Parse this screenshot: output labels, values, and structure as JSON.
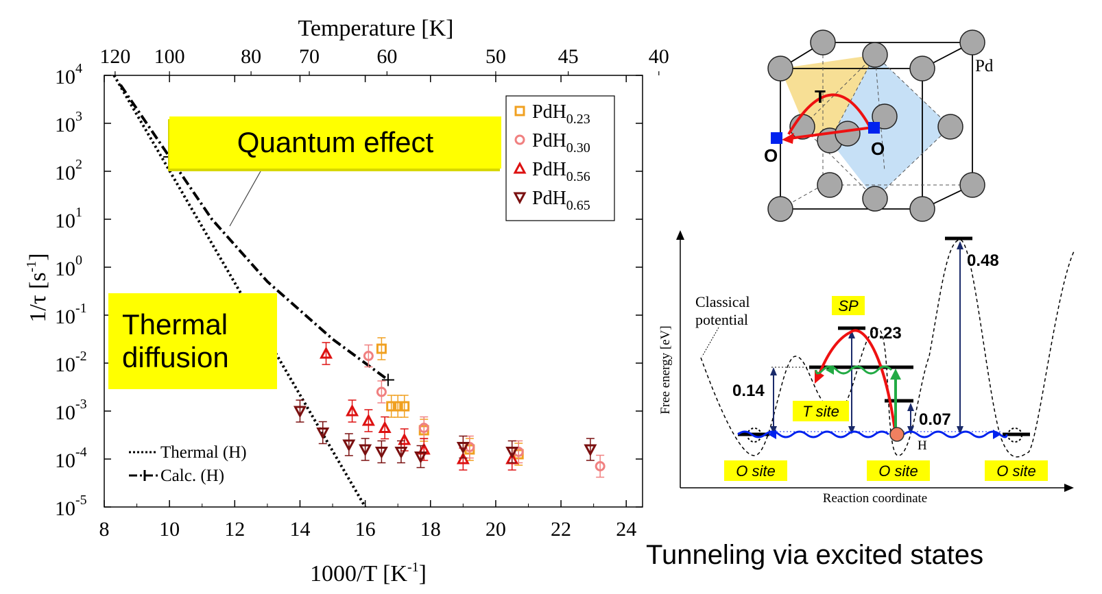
{
  "chart_data": {
    "type": "scatter",
    "top_axis_label": "Temperature [K]",
    "top_ticks": [
      "120",
      "100",
      "80",
      "70",
      "60",
      "50",
      "45",
      "40"
    ],
    "top_tick_values_K": [
      120,
      100,
      80,
      70,
      60,
      50,
      45,
      40
    ],
    "xlabel_main": "1000/T [K",
    "xlabel_sup": "-1",
    "xlabel_close": "]",
    "ylabel_main": "1/τ [s",
    "ylabel_sup": "-1",
    "ylabel_close": "]",
    "xlim": [
      8,
      24.5
    ],
    "ylim_log10": [
      -5,
      4
    ],
    "x_ticks": [
      "8",
      "10",
      "12",
      "14",
      "16",
      "18",
      "20",
      "22",
      "24"
    ],
    "y_tick_exponents": [
      "4",
      "3",
      "2",
      "1",
      "0",
      "-1",
      "-2",
      "-3",
      "-4",
      "-5"
    ],
    "y_tick_base": "10",
    "scale_y": "log",
    "series": [
      {
        "name": "PdH0.23",
        "name_main": "PdH",
        "name_sub": "0.23",
        "marker": "square",
        "color": "#f0a020",
        "points": [
          [
            16.5,
            -1.7
          ],
          [
            16.8,
            -2.9
          ],
          [
            17.0,
            -2.9
          ],
          [
            17.2,
            -2.9
          ],
          [
            17.8,
            -3.4
          ],
          [
            19.2,
            -3.8
          ],
          [
            20.7,
            -3.9
          ]
        ]
      },
      {
        "name": "PdH0.30",
        "name_main": "PdH",
        "name_sub": "0.30",
        "marker": "circle",
        "color": "#f08080",
        "points": [
          [
            16.1,
            -1.85
          ],
          [
            16.5,
            -2.6
          ],
          [
            17.8,
            -3.35
          ],
          [
            19.2,
            -3.75
          ],
          [
            20.7,
            -3.85
          ],
          [
            23.2,
            -4.15
          ]
        ]
      },
      {
        "name": "PdH0.56",
        "name_main": "PdH",
        "name_sub": "0.56",
        "marker": "triangle-up",
        "color": "#dd1111",
        "points": [
          [
            14.8,
            -1.8
          ],
          [
            15.6,
            -3.0
          ],
          [
            16.1,
            -3.2
          ],
          [
            16.6,
            -3.35
          ],
          [
            17.2,
            -3.6
          ],
          [
            17.8,
            -3.8
          ],
          [
            19.0,
            -4.0
          ],
          [
            20.5,
            -4.0
          ]
        ]
      },
      {
        "name": "PdH0.65",
        "name_main": "PdH",
        "name_sub": "0.65",
        "marker": "triangle-down",
        "color": "#7a1010",
        "points": [
          [
            14.0,
            -3.0
          ],
          [
            14.7,
            -3.45
          ],
          [
            15.5,
            -3.7
          ],
          [
            16.0,
            -3.8
          ],
          [
            16.5,
            -3.85
          ],
          [
            17.1,
            -3.85
          ],
          [
            17.7,
            -3.95
          ],
          [
            19.0,
            -3.75
          ],
          [
            20.5,
            -3.85
          ],
          [
            22.9,
            -3.8
          ]
        ]
      }
    ],
    "lines": [
      {
        "name": "Thermal (H)",
        "style": "dotted",
        "points": [
          [
            8.3,
            4.0
          ],
          [
            16.0,
            -5.0
          ]
        ]
      },
      {
        "name": "Calc. (H)",
        "style": "dashdot",
        "points": [
          [
            8.5,
            3.8
          ],
          [
            10.0,
            2.3
          ],
          [
            11.3,
            1.0
          ],
          [
            13.0,
            -0.3
          ],
          [
            15.0,
            -1.5
          ],
          [
            16.7,
            -2.35
          ]
        ]
      }
    ],
    "legend_position": "top-right",
    "bottom_legend": [
      {
        "label": "Thermal (H)",
        "style": "dotted"
      },
      {
        "label": "Calc. (H)",
        "style": "dashdot"
      }
    ]
  },
  "annotations": {
    "quantum_effect": "Quantum effect",
    "thermal_line1": "Thermal",
    "thermal_line2": "diffusion"
  },
  "crystal": {
    "pd_label": "Pd",
    "t_label": "T",
    "o_label_left": "O",
    "o_label_right": "O"
  },
  "energy_diagram": {
    "ylabel": "Free energy [eV]",
    "xlabel": "Reaction coordinate",
    "classical_line1": "Classical",
    "classical_line2": "potential",
    "sp_label": "SP",
    "t_site": "T site",
    "o_site_1": "O site",
    "o_site_2": "O site",
    "o_site_3": "O site",
    "h_label": "H",
    "e_048": "0.48",
    "e_023": "0.23",
    "e_014": "0.14",
    "e_007": "0.07"
  },
  "caption": "Tunneling via excited states",
  "colors": {
    "highlight": "#ffff00",
    "red": "#ee1111",
    "green": "#22aa44",
    "blue": "#0022ee",
    "navy": "#1a2a6a"
  }
}
